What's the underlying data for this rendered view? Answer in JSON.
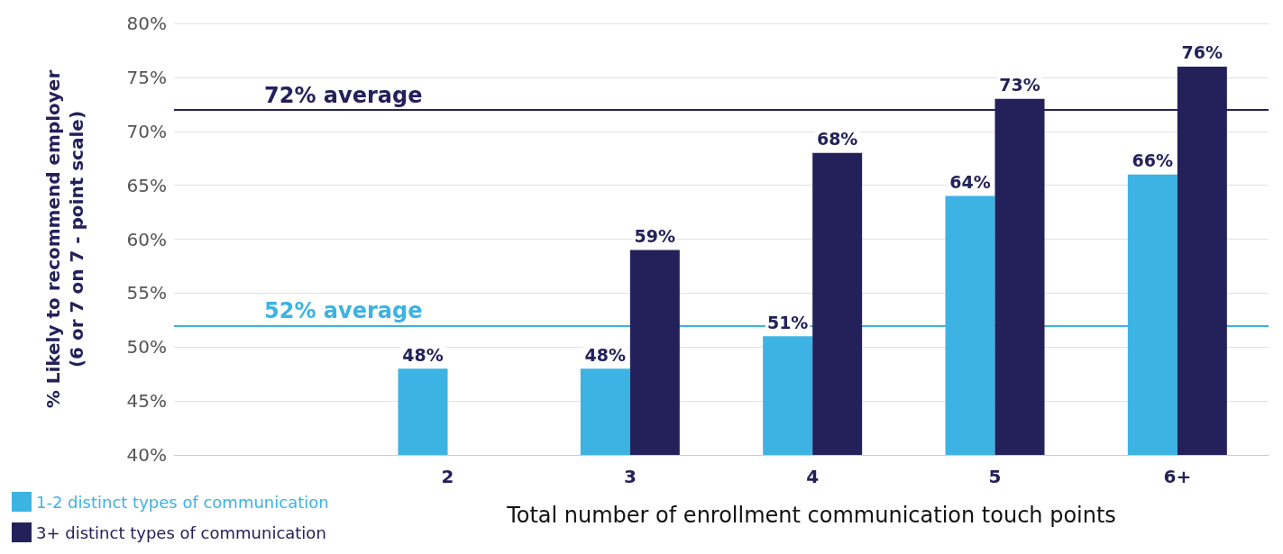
{
  "chart_data": {
    "type": "bar",
    "xlabel": "Total number of enrollment communication touch points",
    "ylabel": "% Likely to recommend employer\n(6 or 7 on 7 - point scale)",
    "categories": [
      null,
      "2",
      "3",
      "4",
      "5",
      "6+"
    ],
    "series": [
      {
        "name": "1-2 distinct types of communication",
        "color": "#3db3e3",
        "values": [
          null,
          48,
          48,
          51,
          64,
          66
        ],
        "value_labels": [
          null,
          "48%",
          "48%",
          "51%",
          "64%",
          "66%"
        ]
      },
      {
        "name": "3+ distinct types of communication",
        "color": "#24215a",
        "values": [
          null,
          null,
          59,
          68,
          73,
          76
        ],
        "value_labels": [
          null,
          null,
          "59%",
          "68%",
          "73%",
          "76%"
        ]
      }
    ],
    "ylim": [
      40,
      80
    ],
    "yticks": [
      {
        "value": 40,
        "label": "40%"
      },
      {
        "value": 45,
        "label": "45%"
      },
      {
        "value": 50,
        "label": "50%"
      },
      {
        "value": 55,
        "label": "55%"
      },
      {
        "value": 60,
        "label": "60%"
      },
      {
        "value": 65,
        "label": "65%"
      },
      {
        "value": 70,
        "label": "70%"
      },
      {
        "value": 75,
        "label": "75%"
      },
      {
        "value": 80,
        "label": "80%"
      }
    ],
    "ref_lines": [
      {
        "axis": "y",
        "value": 72,
        "label": "72% average",
        "color": "#24215a"
      },
      {
        "axis": "y",
        "value": 52,
        "label": "52% average",
        "color": "#3db3e3"
      }
    ],
    "grid": "y",
    "legend": "bottom left"
  }
}
